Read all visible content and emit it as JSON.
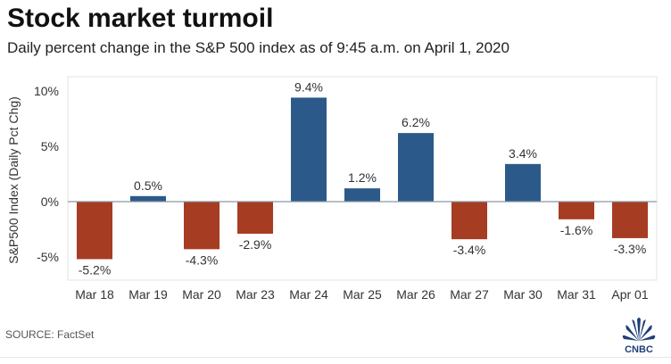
{
  "header": {
    "title": "Stock market turmoil",
    "subtitle": "Daily percent change in the S&P 500 index as of 9:45 a.m. on April 1, 2020"
  },
  "footer": {
    "source": "SOURCE: FactSet",
    "logo_text": "CNBC"
  },
  "colors": {
    "positive": "#2b5a8a",
    "negative": "#a63c22",
    "zero_line": "#8a97a8",
    "frame": "#e3e3e3"
  },
  "chart_data": {
    "type": "bar",
    "title": "Stock market turmoil",
    "subtitle": "Daily percent change in the S&P 500 index as of 9:45 a.m. on April 1, 2020",
    "xlabel": "",
    "ylabel": "S&P500 Index (Daily Pct Chg)",
    "ylim": [
      -7,
      11
    ],
    "yticks": [
      10,
      5,
      0,
      -5
    ],
    "ytick_labels": [
      "10%",
      "5%",
      "0%",
      "-5%"
    ],
    "grid": false,
    "categories": [
      "Mar 18",
      "Mar 19",
      "Mar 20",
      "Mar 23",
      "Mar 24",
      "Mar 25",
      "Mar 26",
      "Mar 27",
      "Mar 30",
      "Mar 31",
      "Apr 01"
    ],
    "values": [
      -5.2,
      0.5,
      -4.3,
      -2.9,
      9.4,
      1.2,
      6.2,
      -3.4,
      3.4,
      -1.6,
      -3.3
    ],
    "data_labels": [
      "-5.2%",
      "0.5%",
      "-4.3%",
      "-2.9%",
      "9.4%",
      "1.2%",
      "6.2%",
      "-3.4%",
      "3.4%",
      "-1.6%",
      "-3.3%"
    ],
    "source": "SOURCE: FactSet"
  }
}
